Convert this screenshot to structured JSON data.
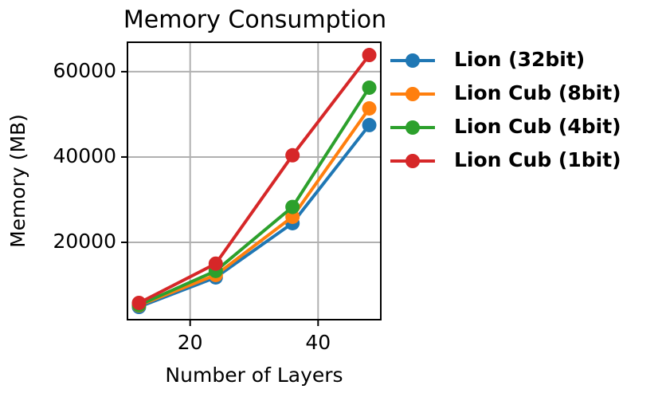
{
  "chart_data": {
    "type": "line",
    "title": "Memory Consumption",
    "x_label": "Number of Layers",
    "y_label": "Memory (MB)",
    "x": [
      12,
      24,
      36,
      48
    ],
    "series": [
      {
        "name": "Lion (32bit)",
        "color": "#1f77b4",
        "values": [
          4860,
          11780,
          24490,
          47480
        ]
      },
      {
        "name": "Lion Cub (8bit)",
        "color": "#ff7f0e",
        "values": [
          5200,
          12340,
          25980,
          51400
        ]
      },
      {
        "name": "Lion Cub (4bit)",
        "color": "#2ca02c",
        "values": [
          5300,
          13300,
          28300,
          56260
        ]
      },
      {
        "name": "Lion Cub (1bit)",
        "color": "#d62728",
        "values": [
          5800,
          15000,
          40400,
          63900
        ]
      }
    ],
    "xlim": [
      10.2,
      49.8
    ],
    "ylim": [
      1870,
      66900
    ],
    "xticks": [
      20,
      40
    ],
    "yticks": [
      20000,
      40000,
      60000
    ],
    "grid": true,
    "legend": "right"
  }
}
